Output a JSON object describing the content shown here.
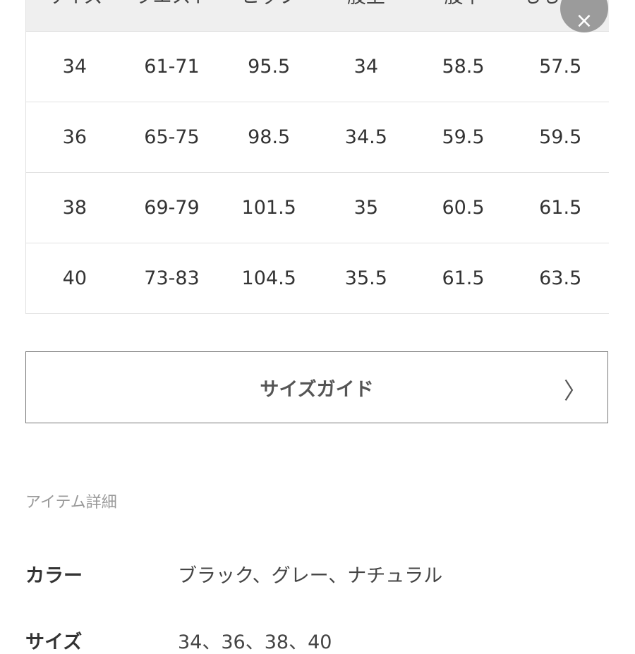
{
  "size_table": {
    "headers": [
      "サイズ",
      "ウエスト",
      "ヒップ",
      "股上",
      "股下",
      "もも周り"
    ],
    "rows": [
      [
        "34",
        "61-71",
        "95.5",
        "34",
        "58.5",
        "57.5"
      ],
      [
        "36",
        "65-75",
        "98.5",
        "34.5",
        "59.5",
        "59.5"
      ],
      [
        "38",
        "69-79",
        "101.5",
        "35",
        "60.5",
        "61.5"
      ],
      [
        "40",
        "73-83",
        "104.5",
        "35.5",
        "61.5",
        "63.5"
      ]
    ]
  },
  "close_label": "×",
  "size_guide_button": {
    "label": "サイズガイド",
    "icon": "chevron-right-icon",
    "glyph": "〉"
  },
  "item_details": {
    "title": "アイテム詳細",
    "specs": [
      {
        "key": "カラー",
        "value": "ブラック、グレー、ナチュラル"
      },
      {
        "key": "サイズ",
        "value": "34、36、38、40"
      }
    ]
  }
}
